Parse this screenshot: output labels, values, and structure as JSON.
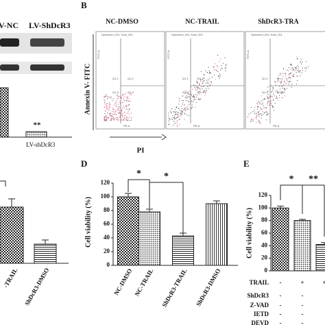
{
  "panel_a": {
    "lanes": [
      "V-NC",
      "LV-ShDcR3"
    ],
    "bar_label": "LV-shDcR3",
    "significance": "**"
  },
  "panel_b": {
    "label": "B",
    "titles": [
      "NC-DMSO",
      "NC-TRAIL",
      "ShDcR3-TRA"
    ],
    "y_label": "Annexin V- FITC",
    "x_label": "PI",
    "plot_header": "Specimen_001-Tube_001",
    "plot_y": "FITC-A",
    "plot_x": "PE-A",
    "quadrants": [
      "Q1-1",
      "Q1-2",
      "Q1-3",
      "Q1-4"
    ]
  },
  "panel_c": {
    "categories": [
      "-TRAIL",
      "ShDcR3-DMSO"
    ]
  },
  "panel_d": {
    "label": "D",
    "y_label": "Cell viability (%)",
    "ylim": [
      0,
      120
    ],
    "yticks": [
      0,
      20,
      40,
      60,
      80,
      100,
      120
    ],
    "categories": [
      "NC-DMSO",
      "NC-TRAIL",
      "ShDcR3-TRAIL",
      "ShDcR3-DMSO"
    ],
    "values": [
      100,
      78,
      43,
      90
    ],
    "errors": [
      5,
      4,
      4,
      4
    ],
    "significance": [
      "*",
      "*"
    ]
  },
  "panel_e": {
    "label": "E",
    "y_label": "Cell viability (%)",
    "ylim": [
      0,
      120
    ],
    "yticks": [
      0,
      20,
      40,
      60,
      80,
      100,
      120
    ],
    "values": [
      100,
      80,
      42
    ],
    "errors": [
      3,
      2,
      3
    ],
    "significance": [
      "*",
      "**"
    ],
    "table": [
      [
        "TRAIL",
        "-",
        "+",
        "+"
      ],
      [
        "ShDcR3",
        "-",
        "-"
      ],
      [
        "Z-VAD",
        "-",
        "-"
      ],
      [
        "IETD",
        "-",
        "-"
      ],
      [
        "DEVD",
        "-",
        "-"
      ]
    ]
  }
}
